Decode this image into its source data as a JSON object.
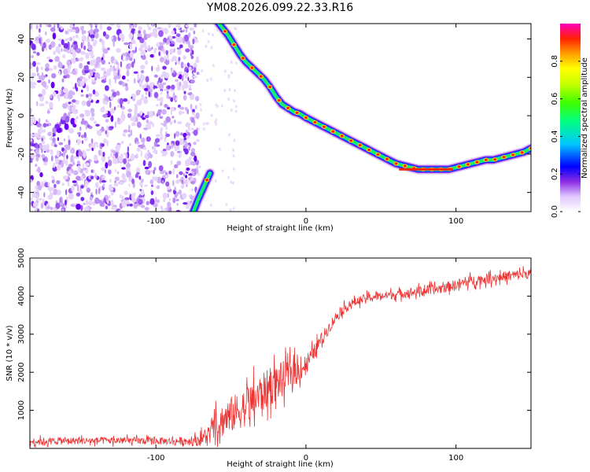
{
  "title": "YM08.2026.099.22.33.R16",
  "chart_data": [
    {
      "type": "heatmap",
      "xlabel": "Height of straight line (km)",
      "ylabel": "Frequency (Hz)",
      "xlim": [
        -184,
        150
      ],
      "ylim": [
        -50,
        48
      ],
      "xticks": [
        -100,
        0,
        100
      ],
      "xtick_labels": [
        "-100",
        "0",
        "100"
      ],
      "yticks": [
        -40,
        -20,
        0,
        20,
        40
      ],
      "ytick_labels": [
        "-40",
        "-20",
        "0",
        "20",
        "40"
      ],
      "noise_region_km": [
        -184,
        -72
      ],
      "trace": {
        "name": "Doppler trace",
        "x": [
          -76,
          -72,
          -68,
          -64,
          -60,
          -56,
          -52,
          -48,
          -44,
          -40,
          -36,
          -32,
          -28,
          -24,
          -20,
          -16,
          -12,
          -8,
          -4,
          0,
          5,
          10,
          15,
          20,
          25,
          30,
          35,
          40,
          45,
          50,
          55,
          60,
          65,
          70,
          75,
          80,
          85,
          90,
          95,
          100,
          105,
          110,
          115,
          120,
          125,
          130,
          135,
          140,
          145,
          150
        ],
        "y": [
          -52,
          -44,
          -37,
          -30,
          50,
          46,
          42,
          37,
          32,
          28,
          25,
          22,
          19,
          15,
          10,
          6,
          4,
          2,
          1,
          -1,
          -3,
          -5,
          -7,
          -9,
          -11,
          -13,
          -15,
          -17,
          -19,
          -21,
          -23,
          -25,
          -26,
          -27,
          -28,
          -28,
          -28,
          -28,
          -28,
          -27,
          -26,
          -25,
          -24,
          -23,
          -23,
          -22,
          -21,
          -20,
          -19,
          -17
        ]
      },
      "colorbar": {
        "label": "Normalized spectral amplitude",
        "range": [
          0,
          1
        ],
        "ticks": [
          0,
          0.2,
          0.4,
          0.6,
          0.8
        ],
        "tick_labels": [
          "0.0",
          "0.2",
          "0.4",
          "0.6",
          "0.8"
        ]
      }
    },
    {
      "type": "line",
      "xlabel": "Height of straight line (km)",
      "ylabel": "SNR (10 * v/v)",
      "xlim": [
        -184,
        150
      ],
      "ylim": [
        0,
        5000
      ],
      "xticks": [
        -100,
        0,
        100
      ],
      "xtick_labels": [
        "-100",
        "0",
        "100"
      ],
      "yticks": [
        1000,
        2000,
        3000,
        4000,
        5000
      ],
      "ytick_labels": [
        "1000",
        "2000",
        "3000",
        "4000",
        "5000"
      ],
      "color": "#ee3333",
      "series": [
        {
          "name": "SNR",
          "x": [
            -184,
            -170,
            -150,
            -130,
            -110,
            -90,
            -75,
            -70,
            -65,
            -60,
            -55,
            -50,
            -45,
            -40,
            -35,
            -30,
            -25,
            -20,
            -15,
            -10,
            -5,
            0,
            5,
            10,
            15,
            20,
            25,
            30,
            40,
            50,
            60,
            70,
            80,
            90,
            100,
            110,
            120,
            130,
            140,
            150
          ],
          "values": [
            180,
            190,
            200,
            205,
            200,
            190,
            200,
            240,
            360,
            560,
            760,
            880,
            980,
            1100,
            1250,
            1420,
            1580,
            1720,
            1850,
            1980,
            2050,
            2200,
            2500,
            2850,
            3150,
            3450,
            3650,
            3800,
            3950,
            4000,
            4050,
            4100,
            4150,
            4200,
            4300,
            4400,
            4450,
            4500,
            4550,
            4600
          ],
          "jitter": [
            170,
            170,
            170,
            170,
            170,
            170,
            220,
            320,
            480,
            700,
            820,
            880,
            900,
            920,
            950,
            950,
            920,
            880,
            820,
            720,
            600,
            500,
            380,
            320,
            280,
            260,
            240,
            220,
            200,
            200,
            220,
            230,
            240,
            250,
            250,
            250,
            250,
            250,
            250,
            250
          ]
        }
      ]
    }
  ]
}
